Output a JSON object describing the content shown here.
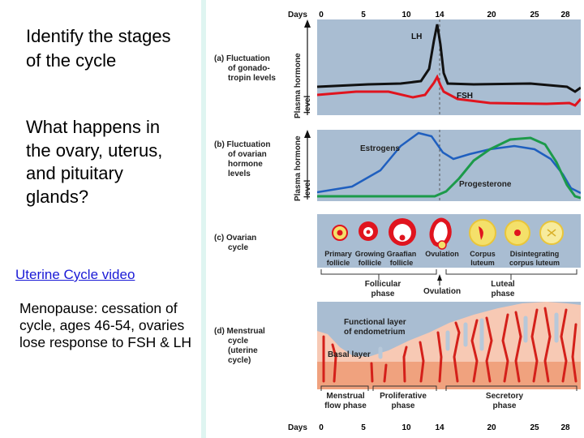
{
  "left": {
    "question1": "Identify the stages of the cycle",
    "question2": "What happens in the ovary, uterus, and pituitary glands?",
    "video_link": "Uterine Cycle video",
    "menopause": "Menopause: cessation of cycle, ages 46-54, ovaries lose response to FSH & LH"
  },
  "figure": {
    "days_label": "Days",
    "day_ticks": [
      "0",
      "5",
      "10",
      "14",
      "20",
      "25",
      "28"
    ],
    "y_axis_label_1": "Plasma hormone",
    "y_axis_label_2": "level",
    "panel_a": {
      "caption_1": "(a) Fluctuation",
      "caption_2": "of gonado-",
      "caption_3": "tropin levels",
      "lh": "LH",
      "fsh": "FSH"
    },
    "panel_b": {
      "caption_1": "(b) Fluctuation",
      "caption_2": "of ovarian",
      "caption_3": "hormone",
      "caption_4": "levels",
      "estrogens": "Estrogens",
      "progesterone": "Progesterone"
    },
    "panel_c": {
      "caption_1": "(c) Ovarian",
      "caption_2": "cycle",
      "stages": [
        {
          "l1": "Primary",
          "l2": "follicle"
        },
        {
          "l1": "Growing",
          "l2": "follicle"
        },
        {
          "l1": "Graafian",
          "l2": "follicle"
        },
        {
          "l1": "Ovulation",
          "l2": ""
        },
        {
          "l1": "Corpus",
          "l2": "luteum"
        },
        {
          "l1": "Disintegrating",
          "l2": "corpus luteum"
        }
      ],
      "phase_follicular_1": "Follicular",
      "phase_follicular_2": "phase",
      "ovulation": "Ovulation",
      "phase_luteal_1": "Luteal",
      "phase_luteal_2": "phase"
    },
    "panel_d": {
      "caption_1": "(d) Menstrual",
      "caption_2": "cycle",
      "caption_3": "(uterine",
      "caption_4": "cycle)",
      "functional_1": "Functional layer",
      "functional_2": "of endometrium",
      "basal": "Basal layer",
      "menstrual_1": "Menstrual",
      "menstrual_2": "flow phase",
      "proliferative_1": "Proliferative",
      "proliferative_2": "phase",
      "secretory_1": "Secretory",
      "secretory_2": "phase"
    },
    "colors": {
      "lh": "#111111",
      "fsh": "#e0141e",
      "estrogen": "#1f5fbf",
      "progesterone": "#1c9a4a",
      "panel_bg": "#a9bdd2"
    }
  }
}
